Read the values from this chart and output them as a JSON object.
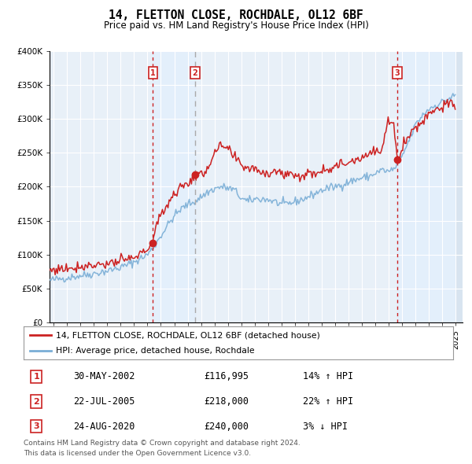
{
  "title": "14, FLETTON CLOSE, ROCHDALE, OL12 6BF",
  "subtitle": "Price paid vs. HM Land Registry's House Price Index (HPI)",
  "legend_line1": "14, FLETTON CLOSE, ROCHDALE, OL12 6BF (detached house)",
  "legend_line2": "HPI: Average price, detached house, Rochdale",
  "transactions": [
    {
      "num": 1,
      "date": "30-MAY-2002",
      "price": 116995,
      "pct": "14%",
      "dir": "↑",
      "year": 2002.41,
      "price_val": 116995
    },
    {
      "num": 2,
      "date": "22-JUL-2005",
      "price": 218000,
      "pct": "22%",
      "dir": "↑",
      "year": 2005.55,
      "price_val": 218000
    },
    {
      "num": 3,
      "date": "24-AUG-2020",
      "price": 240000,
      "pct": "3%",
      "dir": "↓",
      "year": 2020.64,
      "price_val": 240000
    }
  ],
  "footnote1": "Contains HM Land Registry data © Crown copyright and database right 2024.",
  "footnote2": "This data is licensed under the Open Government Licence v3.0.",
  "red_color": "#cc2222",
  "blue_color": "#7aaed6",
  "shade_color": "#ddeeff",
  "hatch_color": "#ccddee",
  "background_color": "#ffffff",
  "plot_bg_color": "#e8f0f8",
  "grid_color": "#ffffff",
  "ylim_max": 400000,
  "xlim_start": 1994.7,
  "xlim_end": 2025.5,
  "hpi_keypoints": [
    [
      1994.7,
      62000
    ],
    [
      1995.0,
      63000
    ],
    [
      1996.0,
      66000
    ],
    [
      1997.0,
      69000
    ],
    [
      1998.0,
      72000
    ],
    [
      1999.0,
      76000
    ],
    [
      2000.0,
      81000
    ],
    [
      2001.0,
      89000
    ],
    [
      2002.0,
      100000
    ],
    [
      2002.5,
      112000
    ],
    [
      2003.0,
      128000
    ],
    [
      2003.5,
      143000
    ],
    [
      2004.0,
      157000
    ],
    [
      2004.5,
      167000
    ],
    [
      2005.0,
      174000
    ],
    [
      2005.5,
      178000
    ],
    [
      2006.0,
      185000
    ],
    [
      2006.5,
      192000
    ],
    [
      2007.0,
      197000
    ],
    [
      2007.5,
      200000
    ],
    [
      2008.0,
      198000
    ],
    [
      2008.5,
      195000
    ],
    [
      2009.0,
      183000
    ],
    [
      2009.5,
      178000
    ],
    [
      2010.0,
      182000
    ],
    [
      2010.5,
      182000
    ],
    [
      2011.0,
      181000
    ],
    [
      2011.5,
      178000
    ],
    [
      2012.0,
      174000
    ],
    [
      2012.5,
      175000
    ],
    [
      2013.0,
      178000
    ],
    [
      2013.5,
      181000
    ],
    [
      2014.0,
      185000
    ],
    [
      2014.5,
      190000
    ],
    [
      2015.0,
      195000
    ],
    [
      2015.5,
      198000
    ],
    [
      2016.0,
      200000
    ],
    [
      2016.5,
      203000
    ],
    [
      2017.0,
      207000
    ],
    [
      2017.5,
      210000
    ],
    [
      2018.0,
      213000
    ],
    [
      2018.5,
      215000
    ],
    [
      2019.0,
      220000
    ],
    [
      2019.5,
      225000
    ],
    [
      2020.0,
      222000
    ],
    [
      2020.5,
      228000
    ],
    [
      2021.0,
      245000
    ],
    [
      2021.5,
      268000
    ],
    [
      2022.0,
      292000
    ],
    [
      2022.5,
      305000
    ],
    [
      2023.0,
      315000
    ],
    [
      2023.5,
      320000
    ],
    [
      2024.0,
      325000
    ],
    [
      2024.5,
      330000
    ],
    [
      2025.0,
      335000
    ]
  ],
  "red_keypoints": [
    [
      1994.7,
      76000
    ],
    [
      1995.0,
      78000
    ],
    [
      1996.0,
      80000
    ],
    [
      1997.0,
      83000
    ],
    [
      1998.0,
      85000
    ],
    [
      1999.0,
      87000
    ],
    [
      2000.0,
      90000
    ],
    [
      2001.0,
      95000
    ],
    [
      2001.5,
      100000
    ],
    [
      2002.0,
      110000
    ],
    [
      2002.41,
      116995
    ],
    [
      2002.5,
      130000
    ],
    [
      2003.0,
      160000
    ],
    [
      2003.5,
      175000
    ],
    [
      2004.0,
      190000
    ],
    [
      2004.5,
      200000
    ],
    [
      2005.0,
      204000
    ],
    [
      2005.55,
      218000
    ],
    [
      2006.0,
      215000
    ],
    [
      2006.5,
      230000
    ],
    [
      2007.0,
      248000
    ],
    [
      2007.5,
      260000
    ],
    [
      2008.0,
      255000
    ],
    [
      2008.5,
      242000
    ],
    [
      2009.0,
      232000
    ],
    [
      2009.5,
      228000
    ],
    [
      2010.0,
      228000
    ],
    [
      2010.5,
      222000
    ],
    [
      2011.0,
      220000
    ],
    [
      2011.5,
      225000
    ],
    [
      2012.0,
      218000
    ],
    [
      2012.5,
      220000
    ],
    [
      2013.0,
      218000
    ],
    [
      2013.5,
      215000
    ],
    [
      2014.0,
      218000
    ],
    [
      2014.5,
      222000
    ],
    [
      2015.0,
      225000
    ],
    [
      2015.5,
      228000
    ],
    [
      2016.0,
      230000
    ],
    [
      2016.5,
      232000
    ],
    [
      2017.0,
      238000
    ],
    [
      2017.5,
      240000
    ],
    [
      2018.0,
      245000
    ],
    [
      2018.5,
      248000
    ],
    [
      2019.0,
      252000
    ],
    [
      2019.5,
      252000
    ],
    [
      2020.0,
      300000
    ],
    [
      2020.3,
      298000
    ],
    [
      2020.64,
      240000
    ],
    [
      2021.0,
      260000
    ],
    [
      2021.5,
      275000
    ],
    [
      2022.0,
      288000
    ],
    [
      2022.5,
      295000
    ],
    [
      2023.0,
      310000
    ],
    [
      2023.5,
      315000
    ],
    [
      2024.0,
      318000
    ],
    [
      2024.5,
      322000
    ],
    [
      2025.0,
      318000
    ]
  ]
}
